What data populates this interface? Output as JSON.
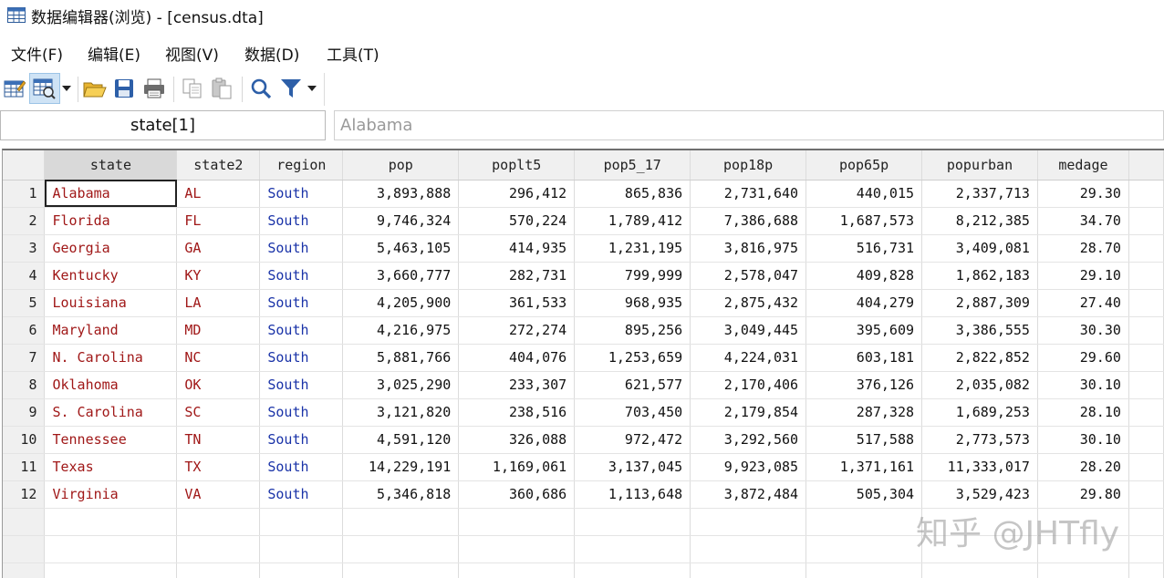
{
  "window": {
    "title": "数据编辑器(浏览) - [census.dta]",
    "icon": "table-icon"
  },
  "menu": [
    "文件(F)",
    "编辑(E)",
    "视图(V)",
    "数据(D)",
    "工具(T)"
  ],
  "toolbar": [
    "edit-mode-icon",
    "browse-mode-icon",
    "open-folder-icon",
    "save-icon",
    "print-icon",
    "copy-icon",
    "paste-icon",
    "search-icon",
    "filter-icon"
  ],
  "name_box": "state[1]",
  "value_box": "Alabama",
  "columns": [
    "state",
    "state2",
    "region",
    "pop",
    "poplt5",
    "pop5_17",
    "pop18p",
    "pop65p",
    "popurban",
    "medage"
  ],
  "rows": [
    {
      "n": "1",
      "state": "Alabama",
      "state2": "AL",
      "region": "South",
      "pop": "3,893,888",
      "poplt5": "296,412",
      "pop5_17": "865,836",
      "pop18p": "2,731,640",
      "pop65p": "440,015",
      "popurban": "2,337,713",
      "medage": "29.30"
    },
    {
      "n": "2",
      "state": "Florida",
      "state2": "FL",
      "region": "South",
      "pop": "9,746,324",
      "poplt5": "570,224",
      "pop5_17": "1,789,412",
      "pop18p": "7,386,688",
      "pop65p": "1,687,573",
      "popurban": "8,212,385",
      "medage": "34.70"
    },
    {
      "n": "3",
      "state": "Georgia",
      "state2": "GA",
      "region": "South",
      "pop": "5,463,105",
      "poplt5": "414,935",
      "pop5_17": "1,231,195",
      "pop18p": "3,816,975",
      "pop65p": "516,731",
      "popurban": "3,409,081",
      "medage": "28.70"
    },
    {
      "n": "4",
      "state": "Kentucky",
      "state2": "KY",
      "region": "South",
      "pop": "3,660,777",
      "poplt5": "282,731",
      "pop5_17": "799,999",
      "pop18p": "2,578,047",
      "pop65p": "409,828",
      "popurban": "1,862,183",
      "medage": "29.10"
    },
    {
      "n": "5",
      "state": "Louisiana",
      "state2": "LA",
      "region": "South",
      "pop": "4,205,900",
      "poplt5": "361,533",
      "pop5_17": "968,935",
      "pop18p": "2,875,432",
      "pop65p": "404,279",
      "popurban": "2,887,309",
      "medage": "27.40"
    },
    {
      "n": "6",
      "state": "Maryland",
      "state2": "MD",
      "region": "South",
      "pop": "4,216,975",
      "poplt5": "272,274",
      "pop5_17": "895,256",
      "pop18p": "3,049,445",
      "pop65p": "395,609",
      "popurban": "3,386,555",
      "medage": "30.30"
    },
    {
      "n": "7",
      "state": "N. Carolina",
      "state2": "NC",
      "region": "South",
      "pop": "5,881,766",
      "poplt5": "404,076",
      "pop5_17": "1,253,659",
      "pop18p": "4,224,031",
      "pop65p": "603,181",
      "popurban": "2,822,852",
      "medage": "29.60"
    },
    {
      "n": "8",
      "state": "Oklahoma",
      "state2": "OK",
      "region": "South",
      "pop": "3,025,290",
      "poplt5": "233,307",
      "pop5_17": "621,577",
      "pop18p": "2,170,406",
      "pop65p": "376,126",
      "popurban": "2,035,082",
      "medage": "30.10"
    },
    {
      "n": "9",
      "state": "S. Carolina",
      "state2": "SC",
      "region": "South",
      "pop": "3,121,820",
      "poplt5": "238,516",
      "pop5_17": "703,450",
      "pop18p": "2,179,854",
      "pop65p": "287,328",
      "popurban": "1,689,253",
      "medage": "28.10"
    },
    {
      "n": "10",
      "state": "Tennessee",
      "state2": "TN",
      "region": "South",
      "pop": "4,591,120",
      "poplt5": "326,088",
      "pop5_17": "972,472",
      "pop18p": "3,292,560",
      "pop65p": "517,588",
      "popurban": "2,773,573",
      "medage": "30.10"
    },
    {
      "n": "11",
      "state": "Texas",
      "state2": "TX",
      "region": "South",
      "pop": "14,229,191",
      "poplt5": "1,169,061",
      "pop5_17": "3,137,045",
      "pop18p": "9,923,085",
      "pop65p": "1,371,161",
      "popurban": "11,333,017",
      "medage": "28.20"
    },
    {
      "n": "12",
      "state": "Virginia",
      "state2": "VA",
      "region": "South",
      "pop": "5,346,818",
      "poplt5": "360,686",
      "pop5_17": "1,113,648",
      "pop18p": "3,872,484",
      "pop65p": "505,304",
      "popurban": "3,529,423",
      "medage": "29.80"
    }
  ],
  "watermark": "知乎 @JHTfly",
  "colors": {
    "string_value": "#a01818",
    "labeled_value": "#1a33a8",
    "selected_column": "#d9d9d9",
    "active_tool": "#cfe3f5"
  }
}
